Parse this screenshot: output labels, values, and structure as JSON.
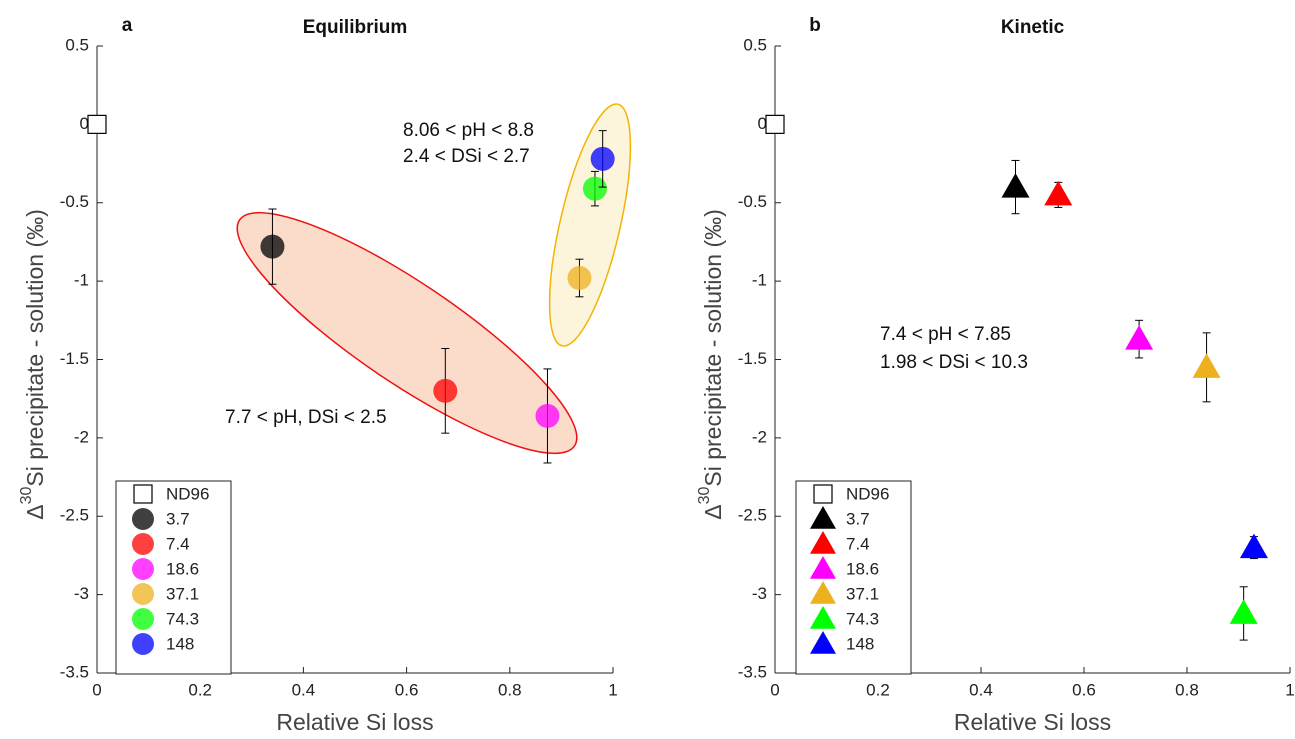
{
  "chart_data": [
    {
      "type": "scatter",
      "panel_label": "a",
      "title": "Equilibrium",
      "xlabel": "Relative Si loss",
      "ylabel": [
        "Δ",
        "30",
        "Si precipitate - solution (‰)"
      ],
      "xlim": [
        0,
        1
      ],
      "ylim": [
        -3.5,
        0.5
      ],
      "xticks": [
        0,
        0.2,
        0.4,
        0.6,
        0.8,
        1
      ],
      "yticks": [
        0.5,
        0,
        -0.5,
        -1,
        -1.5,
        -2,
        -2.5,
        -3,
        -3.5
      ],
      "marker": "circle",
      "annotations": [
        "8.06 < pH < 8.8",
        "2.4 < DSi < 2.7",
        "7.7 < pH, DSi < 2.5"
      ],
      "series": [
        {
          "name": "ND96",
          "color": "#ffffff",
          "x": [
            0
          ],
          "values": [
            0
          ]
        },
        {
          "name": "3.7",
          "color": "#000000",
          "x": [
            0.34
          ],
          "values": [
            -0.78
          ],
          "errors": [
            0.24
          ]
        },
        {
          "name": "7.4",
          "color": "#ff0000",
          "x": [
            0.675
          ],
          "values": [
            -1.7
          ],
          "errors": [
            0.27
          ]
        },
        {
          "name": "18.6",
          "color": "#ff00ff",
          "x": [
            0.873
          ],
          "values": [
            -1.86
          ],
          "errors": [
            0.3
          ]
        },
        {
          "name": "37.1",
          "color": "#edb120",
          "x": [
            0.935
          ],
          "values": [
            -0.98
          ],
          "errors": [
            0.12
          ]
        },
        {
          "name": "74.3",
          "color": "#00ff00",
          "x": [
            0.965
          ],
          "values": [
            -0.41
          ],
          "errors": [
            0.11
          ]
        },
        {
          "name": "148",
          "color": "#0000ff",
          "x": [
            0.98
          ],
          "values": [
            -0.22
          ],
          "errors": [
            0.18
          ]
        }
      ]
    },
    {
      "type": "scatter",
      "panel_label": "b",
      "title": "Kinetic",
      "xlabel": "Relative Si loss",
      "ylabel": [
        "Δ",
        "30",
        "Si precipitate - solution (‰)"
      ],
      "xlim": [
        0,
        1
      ],
      "ylim": [
        -3.5,
        0.5
      ],
      "xticks": [
        0,
        0.2,
        0.4,
        0.6,
        0.8,
        1
      ],
      "yticks": [
        0.5,
        0,
        -0.5,
        -1,
        -1.5,
        -2,
        -2.5,
        -3,
        -3.5
      ],
      "marker": "triangle",
      "annotations": [
        "7.4 < pH < 7.85",
        "1.98 < DSi < 10.3"
      ],
      "series": [
        {
          "name": "ND96",
          "color": "#ffffff",
          "x": [
            0
          ],
          "values": [
            0
          ]
        },
        {
          "name": "3.7",
          "color": "#000000",
          "x": [
            0.467
          ],
          "values": [
            -0.4
          ],
          "errors": [
            0.17
          ]
        },
        {
          "name": "7.4",
          "color": "#ff0000",
          "x": [
            0.55
          ],
          "values": [
            -0.45
          ],
          "errors": [
            0.08
          ]
        },
        {
          "name": "18.6",
          "color": "#ff00ff",
          "x": [
            0.707
          ],
          "values": [
            -1.37
          ],
          "errors": [
            0.12
          ]
        },
        {
          "name": "37.1",
          "color": "#edb120",
          "x": [
            0.838
          ],
          "values": [
            -1.55
          ],
          "errors": [
            0.22
          ]
        },
        {
          "name": "74.3",
          "color": "#00ff00",
          "x": [
            0.91
          ],
          "values": [
            -3.12
          ],
          "errors": [
            0.17
          ]
        },
        {
          "name": "148",
          "color": "#0000ff",
          "x": [
            0.93
          ],
          "values": [
            -2.7
          ],
          "errors": [
            0.07
          ]
        }
      ]
    }
  ]
}
